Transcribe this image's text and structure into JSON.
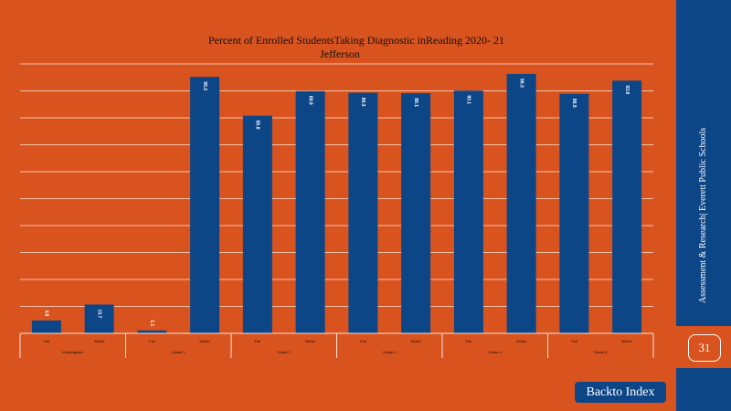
{
  "slide": {
    "org_label": "Assessment & Research|  Everett Public Schools",
    "page_number": "31",
    "back_button_label": "Backto Index"
  },
  "colors": {
    "background": "#d9531e",
    "bar": "#0d4687",
    "gridline": "#f2c2a8",
    "axis": "#f5e6dc"
  },
  "chart_data": {
    "type": "bar",
    "title": "Percent  of Enrolled StudentsTaking Diagnostic inReading  2020- 21",
    "subtitle": "Jefferson",
    "xlabel": "",
    "ylabel": "",
    "ylim": [
      0,
      100
    ],
    "grid": true,
    "legend": "none",
    "groups": [
      {
        "label": "Kindergarten",
        "bars": [
          {
            "label": "Fall",
            "value": 4.8
          },
          {
            "label": "Winter",
            "value": 10.7
          }
        ]
      },
      {
        "label": "Grade     1",
        "bars": [
          {
            "label": "Fall",
            "value": 1.1
          },
          {
            "label": "Winter",
            "value": 95.2
          }
        ]
      },
      {
        "label": "Grade     2",
        "bars": [
          {
            "label": "Fall",
            "value": 80.8
          },
          {
            "label": "Winter",
            "value": 89.9
          }
        ]
      },
      {
        "label": "Grade     3",
        "bars": [
          {
            "label": "Fall",
            "value": 89.3
          },
          {
            "label": "Winter",
            "value": 89.1
          }
        ]
      },
      {
        "label": "Grade     4",
        "bars": [
          {
            "label": "Fall",
            "value": 90.1
          },
          {
            "label": "Winter",
            "value": 96.3
          }
        ]
      },
      {
        "label": "Grade     5",
        "bars": [
          {
            "label": "Fall",
            "value": 88.9
          },
          {
            "label": "Winter",
            "value": 93.8
          }
        ]
      }
    ]
  }
}
